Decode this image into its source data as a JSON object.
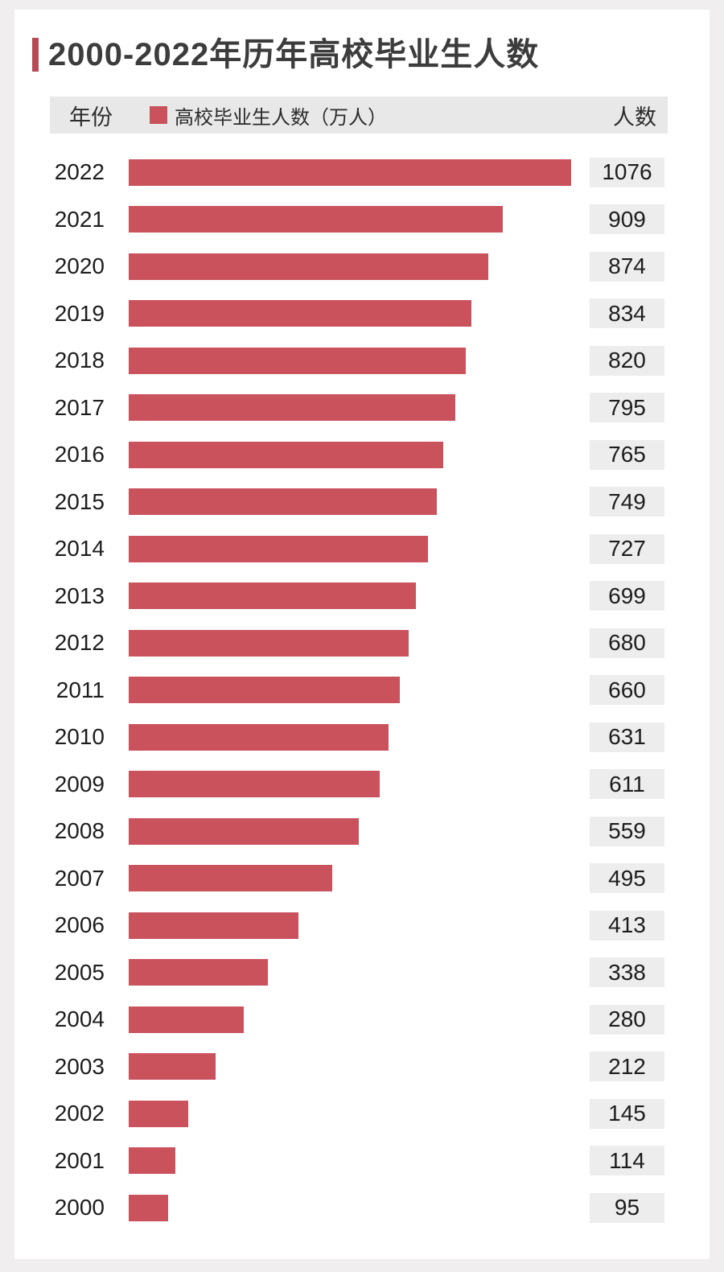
{
  "header": {
    "year_label": "年份",
    "legend_label": "高校毕业生人数（万人）",
    "value_label": "人数"
  },
  "colors": {
    "bar": "#c9525c",
    "accent": "#b54b54",
    "header_bg": "#e9e8e8",
    "badge_bg": "#ededed",
    "card_bg": "#ffffff",
    "page_bg": "#f0eeee",
    "title_text": "#3c3c3c"
  },
  "chart_data": {
    "type": "bar",
    "orientation": "horizontal",
    "title": "2000-2022年历年高校毕业生人数",
    "series_name": "高校毕业生人数（万人）",
    "unit": "万人",
    "categories": [
      "2022",
      "2021",
      "2020",
      "2019",
      "2018",
      "2017",
      "2016",
      "2015",
      "2014",
      "2013",
      "2012",
      "2011",
      "2010",
      "2009",
      "2008",
      "2007",
      "2006",
      "2005",
      "2004",
      "2003",
      "2002",
      "2001",
      "2000"
    ],
    "values": [
      1076,
      909,
      874,
      834,
      820,
      795,
      765,
      749,
      727,
      699,
      680,
      660,
      631,
      611,
      559,
      495,
      413,
      338,
      280,
      212,
      145,
      114,
      95
    ],
    "xlim": [
      0,
      1076
    ],
    "grid": false,
    "legend_position": "top",
    "value_labels": "right-badges"
  }
}
